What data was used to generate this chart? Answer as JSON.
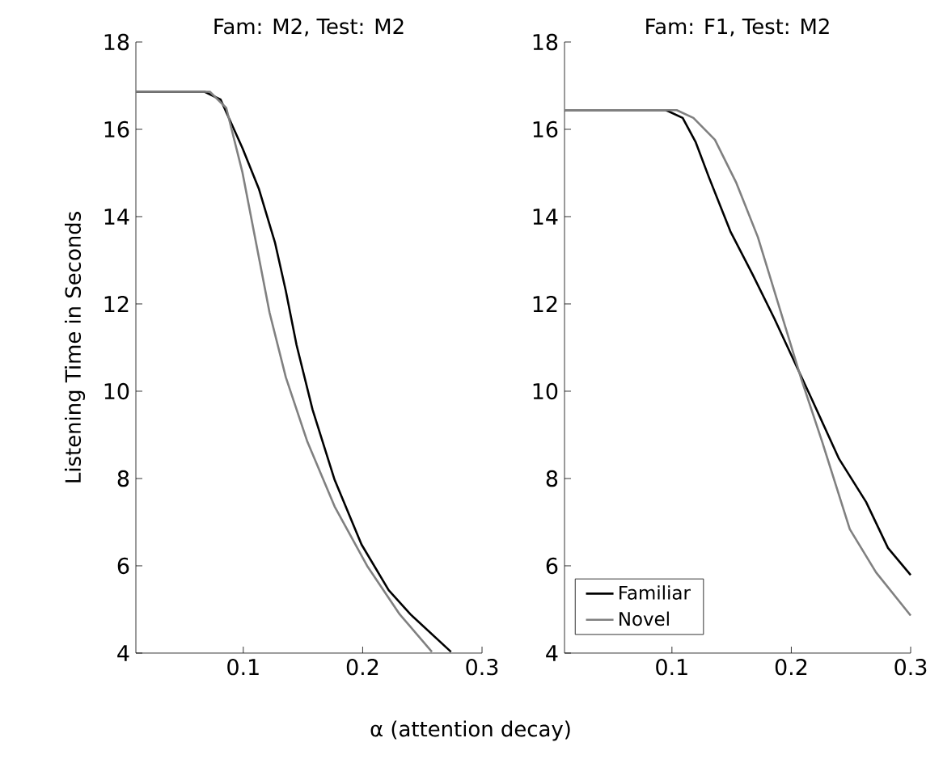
{
  "chart_data": [
    {
      "type": "line",
      "title": "Fam: M2, Test: M2",
      "ylabel": "Listening Time in Seconds",
      "xlabel": "α (attention decay)",
      "xlim": [
        0.01,
        0.3
      ],
      "ylim": [
        4,
        18
      ],
      "xticks": [
        0.1,
        0.2,
        0.3
      ],
      "yticks": [
        4,
        6,
        8,
        10,
        12,
        14,
        16,
        18
      ],
      "grid": false,
      "legend": false,
      "series": [
        {
          "color": "#000000",
          "x": [
            0.01,
            0.04,
            0.0676,
            0.081,
            0.0993,
            0.113,
            0.1265,
            0.1356,
            0.1446,
            0.158,
            0.1765,
            0.199,
            0.2218,
            0.24,
            0.274
          ],
          "values": [
            16.86,
            16.86,
            16.86,
            16.68,
            15.57,
            14.64,
            13.41,
            12.3,
            11.06,
            9.58,
            7.97,
            6.49,
            5.44,
            4.89,
            4.03
          ]
        },
        {
          "color": "#808080",
          "x": [
            0.01,
            0.04,
            0.072,
            0.0857,
            0.0993,
            0.1106,
            0.122,
            0.1356,
            0.1537,
            0.1765,
            0.2037,
            0.231,
            0.258
          ],
          "values": [
            16.86,
            16.86,
            16.86,
            16.49,
            15.01,
            13.41,
            11.8,
            10.32,
            8.84,
            7.36,
            6.0,
            4.89,
            4.03
          ]
        }
      ]
    },
    {
      "type": "line",
      "title": "Fam: F1, Test: M2",
      "xlim": [
        0.01,
        0.3
      ],
      "ylim": [
        4,
        18
      ],
      "xticks": [
        0.1,
        0.2,
        0.3
      ],
      "yticks": [
        4,
        6,
        8,
        10,
        12,
        14,
        16,
        18
      ],
      "grid": false,
      "legend": "bottom left",
      "series": [
        {
          "name": "Familiar",
          "color": "#000000",
          "x": [
            0.01,
            0.05,
            0.095,
            0.109,
            0.12,
            0.131,
            0.149,
            0.1677,
            0.1857,
            0.1993,
            0.2173,
            0.24,
            0.2627,
            0.281,
            0.3
          ],
          "values": [
            16.44,
            16.44,
            16.44,
            16.26,
            15.7,
            14.9,
            13.66,
            12.67,
            11.67,
            10.87,
            9.81,
            8.45,
            7.46,
            6.41,
            5.79
          ]
        },
        {
          "name": "Novel",
          "color": "#808080",
          "x": [
            0.01,
            0.05,
            0.104,
            0.118,
            0.136,
            0.154,
            0.172,
            0.19,
            0.208,
            0.226,
            0.249,
            0.271,
            0.3
          ],
          "values": [
            16.44,
            16.44,
            16.44,
            16.26,
            15.76,
            14.77,
            13.53,
            11.92,
            10.31,
            8.83,
            6.84,
            5.85,
            4.86
          ]
        }
      ]
    }
  ]
}
